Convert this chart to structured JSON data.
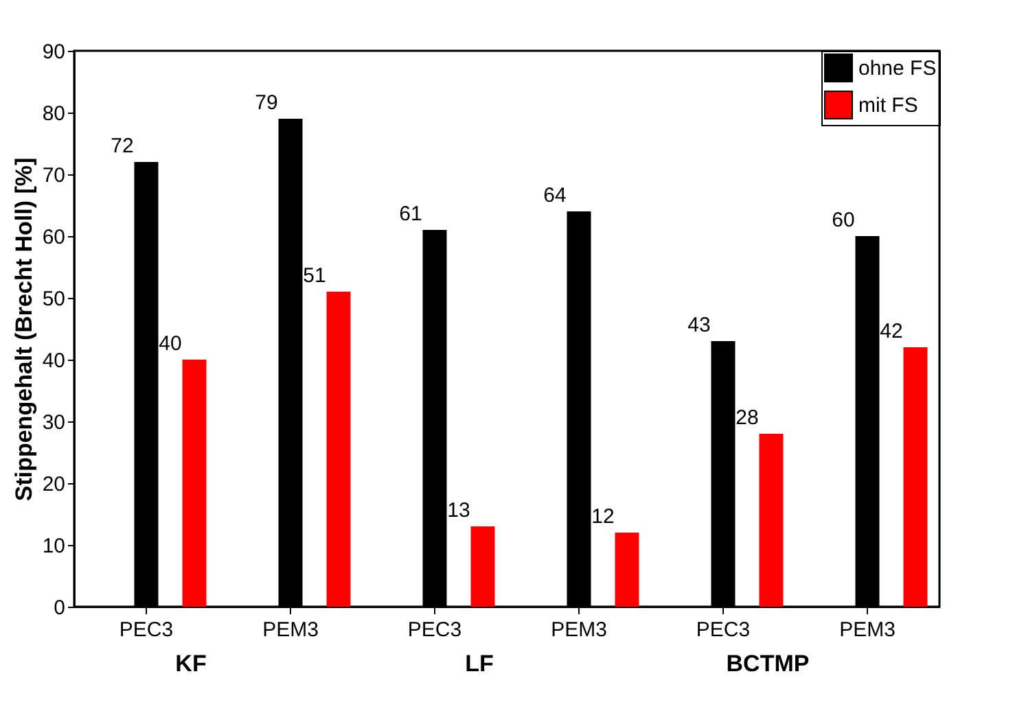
{
  "chart_data": {
    "type": "bar",
    "ylabel": "Stippengehalt (Brecht Holl) [%]",
    "categories": [
      "PEC3",
      "PEM3",
      "PEC3",
      "PEM3",
      "PEC3",
      "PEM3"
    ],
    "series": [
      {
        "name": "ohne FS",
        "color": "#000000",
        "values": [
          72,
          79,
          61,
          64,
          43,
          60
        ]
      },
      {
        "name": "mit FS",
        "color": "#ff0000",
        "values": [
          40,
          51,
          13,
          12,
          28,
          42
        ]
      }
    ],
    "annotations": [
      "KF",
      "LF",
      "BCTMP"
    ],
    "ylim": [
      0,
      90
    ],
    "yticks": [
      0,
      10,
      20,
      30,
      40,
      50,
      60,
      70,
      80,
      90
    ],
    "data_labels": true,
    "legend": "top right",
    "grid": false
  }
}
